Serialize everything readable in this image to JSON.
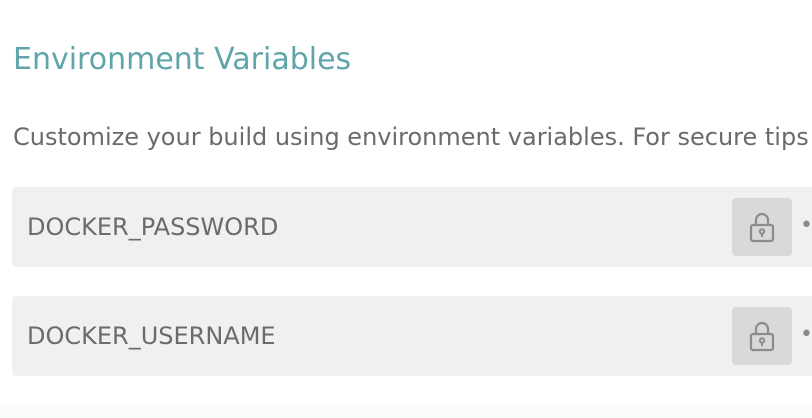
{
  "section": {
    "title": "Environment Variables",
    "description": "Customize your build using environment variables. For secure tips on"
  },
  "env_vars": [
    {
      "name": "DOCKER_PASSWORD",
      "masked_value": "••",
      "secure": true,
      "icon": "lock-icon"
    },
    {
      "name": "DOCKER_USERNAME",
      "masked_value": "••",
      "secure": true,
      "icon": "lock-icon"
    }
  ],
  "colors": {
    "title": "#5fa5aa",
    "text": "#6b6b6b",
    "row_background": "#f0f0f0",
    "lock_button_background": "#d9d9d9"
  }
}
